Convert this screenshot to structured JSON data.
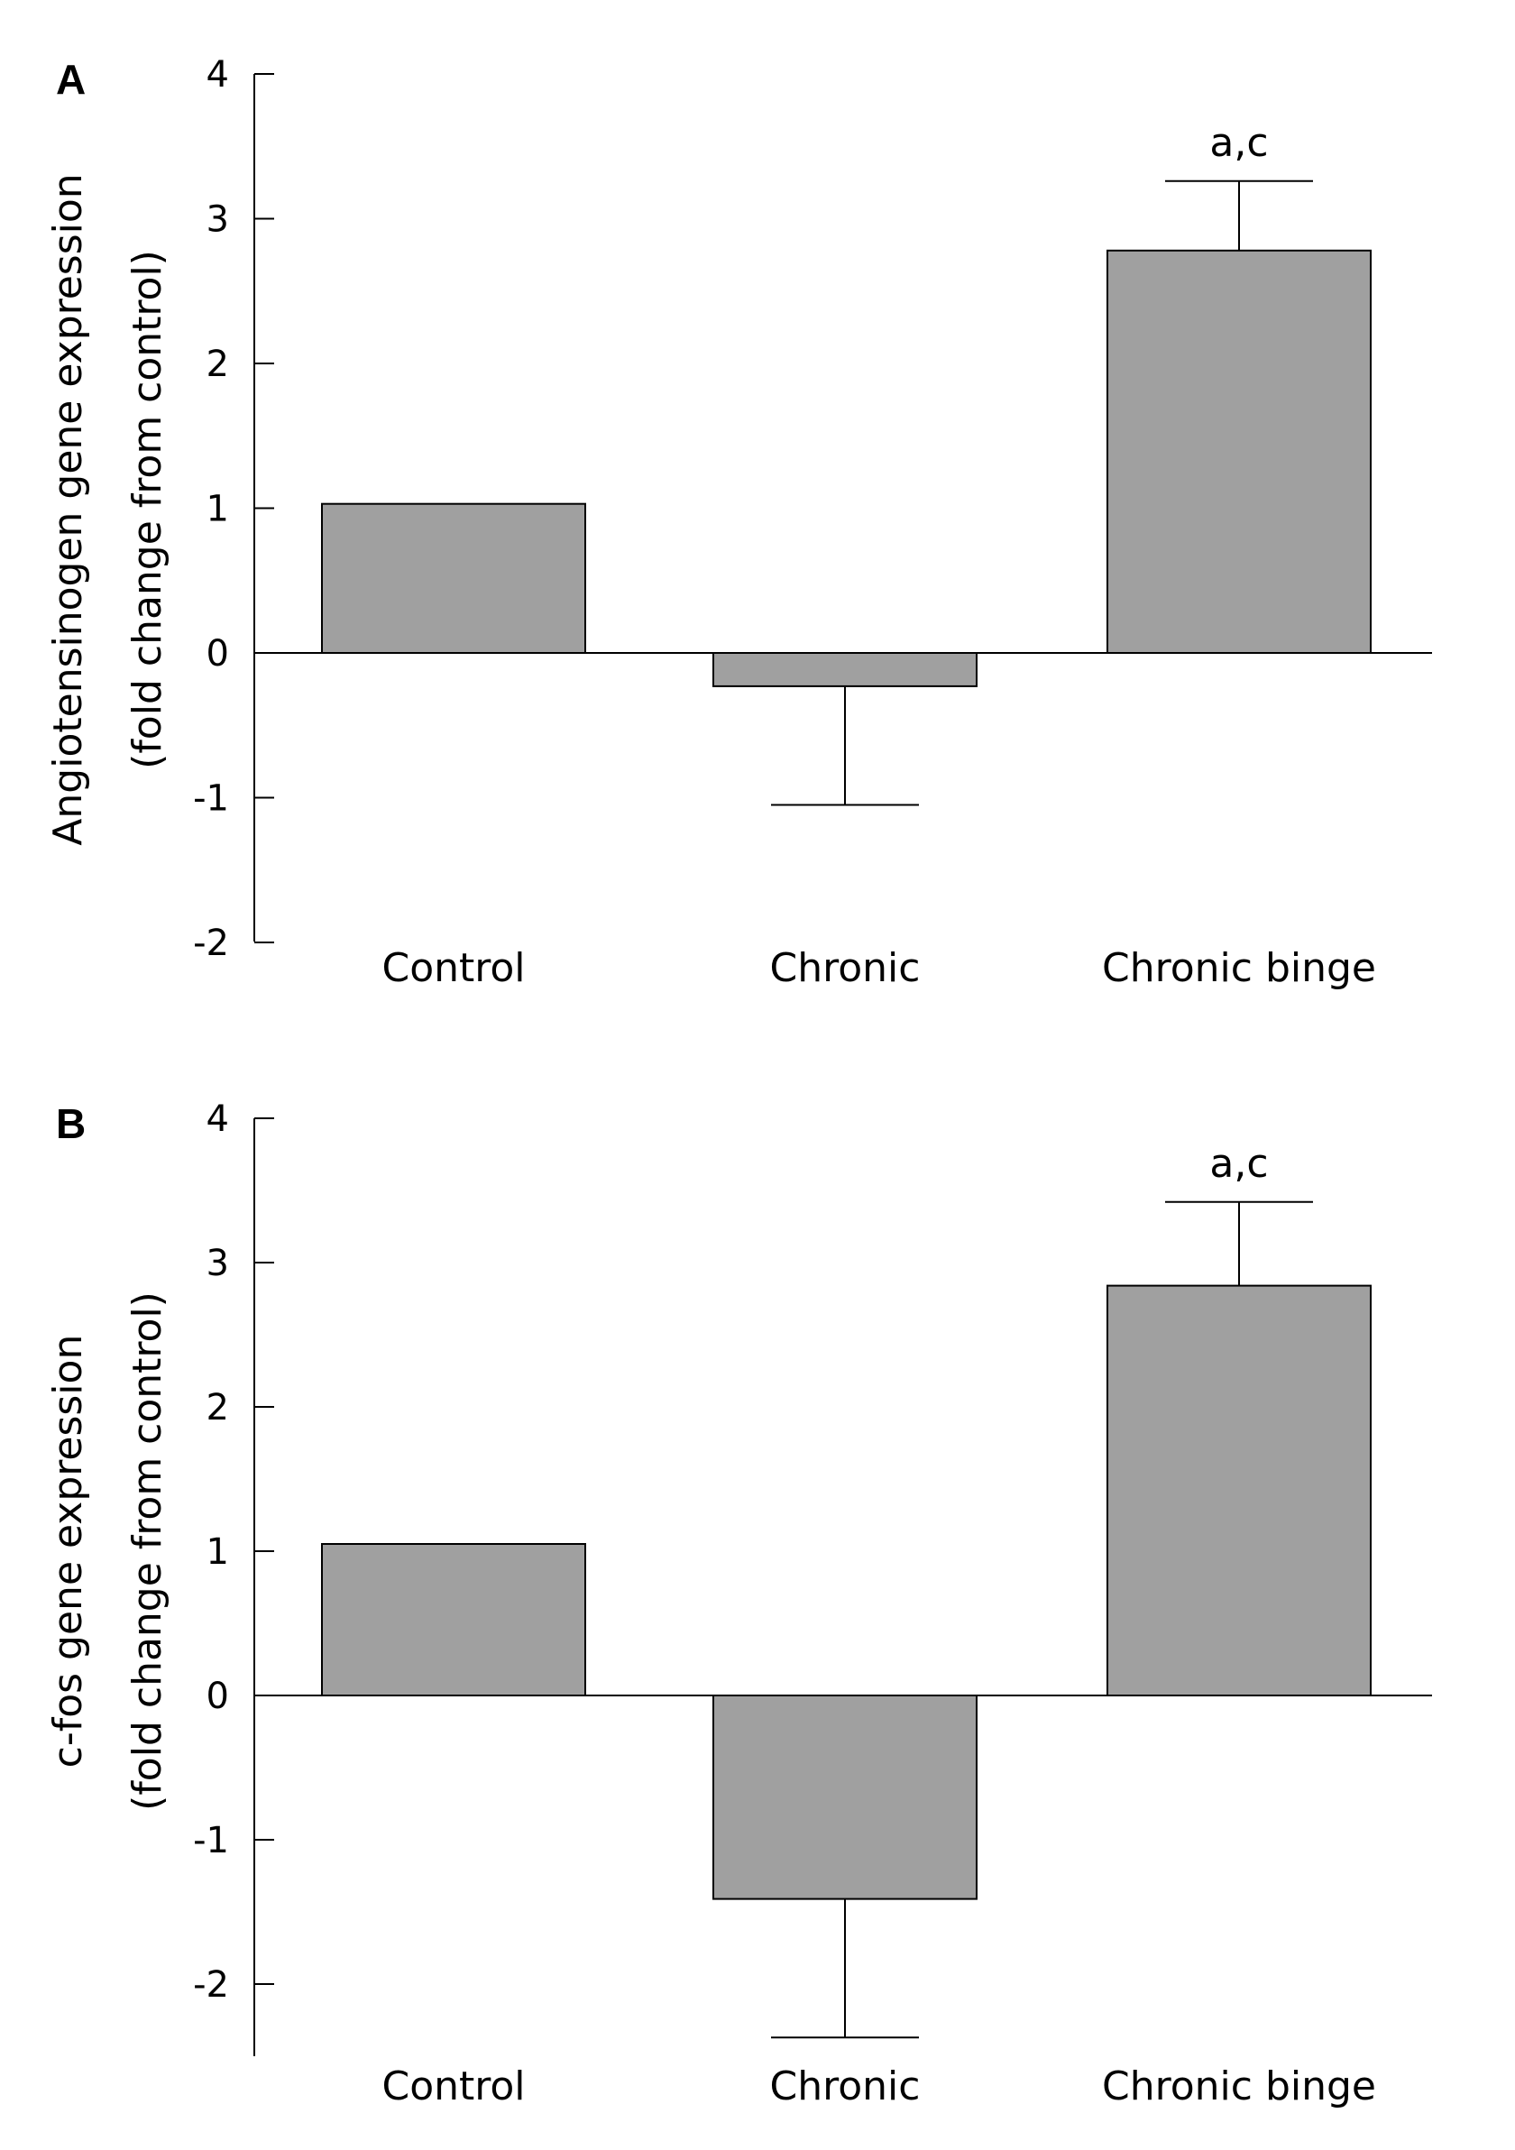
{
  "chart_data": [
    {
      "type": "bar",
      "panel": "A",
      "categories": [
        "Control",
        "Chronic",
        "Chronic binge"
      ],
      "values": [
        1.03,
        -0.23,
        2.78
      ],
      "error_bars": [
        null,
        0.82,
        0.48
      ],
      "annotations": [
        "",
        "",
        "a,c"
      ],
      "ylabel": [
        "Angiotensinogen gene expression",
        "(fold change from control)"
      ],
      "yticks": [
        "4",
        "3",
        "2",
        "1",
        "0",
        "-1",
        "-2"
      ],
      "ylim": [
        -2,
        4
      ],
      "bar_color": "#a0a0a0"
    },
    {
      "type": "bar",
      "panel": "B",
      "categories": [
        "Control",
        "Chronic",
        "Chronic binge"
      ],
      "values": [
        1.05,
        -1.41,
        2.84
      ],
      "error_bars": [
        null,
        0.96,
        0.58
      ],
      "annotations": [
        "",
        "",
        "a,c"
      ],
      "ylabel": [
        "c-fos gene expression",
        "(fold change from control)"
      ],
      "yticks": [
        "4",
        "3",
        "2",
        "1",
        "0",
        "-1",
        "-2"
      ],
      "ylim": [
        -2.5,
        4
      ],
      "bar_color": "#a0a0a0"
    }
  ]
}
